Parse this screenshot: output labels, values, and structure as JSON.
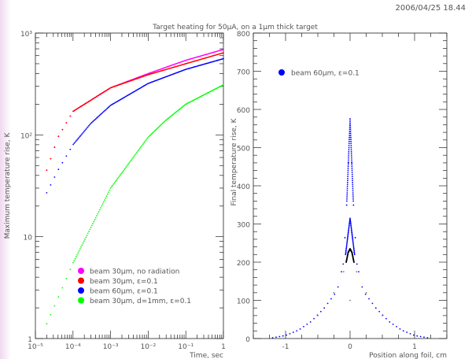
{
  "timestamp": "2006/04/25  18.44",
  "title": "Target heating for 50µA, on a 1µm thick target",
  "chart_data": [
    {
      "type": "scatter",
      "scale": "log-log",
      "xlabel": "Time, sec",
      "ylabel": "Maximum temperature rise, K",
      "xlim": [
        1e-05,
        1
      ],
      "ylim": [
        1,
        1000
      ],
      "x_ticks": [
        "10⁻⁵",
        "10⁻⁴",
        "10⁻³",
        "10⁻²",
        "10⁻¹",
        "1"
      ],
      "y_ticks": [
        "1",
        "10",
        "10²",
        "10³"
      ],
      "legend_position": "bottom-left",
      "series": [
        {
          "name": "beam 30µm, no radiation",
          "color": "#ff00ff",
          "x": [
            2e-05,
            4e-05,
            0.0001,
            0.001,
            0.01,
            0.1,
            1
          ],
          "y": [
            45,
            95,
            170,
            290,
            400,
            540,
            690
          ]
        },
        {
          "name": "beam 30µm, ε=0.1",
          "color": "#ff0000",
          "x": [
            2e-05,
            4e-05,
            0.0001,
            0.001,
            0.01,
            0.1,
            1
          ],
          "y": [
            45,
            95,
            170,
            290,
            390,
            500,
            640
          ]
        },
        {
          "name": "beam 60µm, ε=0.1",
          "color": "#0000ff",
          "x": [
            2e-05,
            4e-05,
            0.0001,
            0.0003,
            0.001,
            0.01,
            0.1,
            1
          ],
          "y": [
            27,
            45,
            80,
            130,
            195,
            320,
            440,
            560
          ]
        },
        {
          "name": "beam 30µm, d=1mm, ε=0.1",
          "color": "#00ff00",
          "x": [
            2e-05,
            4e-05,
            0.0001,
            0.001,
            0.01,
            0.03,
            0.1,
            1
          ],
          "y": [
            1.4,
            2.5,
            5.5,
            30,
            95,
            140,
            200,
            310
          ]
        }
      ]
    },
    {
      "type": "scatter",
      "xlabel": "Position along foil, cm",
      "ylabel": "Final temperature rise, K",
      "xlim": [
        -1.5,
        1.5
      ],
      "ylim": [
        0,
        800
      ],
      "x_ticks": [
        "-1",
        "0",
        "1"
      ],
      "y_ticks": [
        "0",
        "100",
        "200",
        "300",
        "400",
        "500",
        "600",
        "700",
        "800"
      ],
      "legend_position": "top-left",
      "series": [
        {
          "name": "beam  60µm, ε=0.1",
          "color": "#0000ff",
          "x": [
            -1.2,
            -1.0,
            -0.8,
            -0.6,
            -0.4,
            -0.2,
            -0.1,
            -0.05,
            0,
            0.05,
            0.1,
            0.2,
            0.4,
            0.6,
            0.8,
            1.0,
            1.2
          ],
          "y": [
            2,
            8,
            22,
            45,
            80,
            125,
            200,
            360,
            575,
            360,
            200,
            125,
            80,
            45,
            22,
            8,
            2
          ]
        },
        {
          "name": "",
          "color": "#000000",
          "x": [
            -0.06,
            -0.03,
            0,
            0.03,
            0.06
          ],
          "y": [
            200,
            225,
            235,
            225,
            200
          ]
        },
        {
          "name": "",
          "color": "#777777",
          "x": [
            -0.5,
            -0.25,
            -0.1,
            0,
            0.1,
            0.25,
            0.5
          ],
          "y": [
            60,
            120,
            175,
            100,
            175,
            120,
            60
          ]
        }
      ]
    }
  ]
}
